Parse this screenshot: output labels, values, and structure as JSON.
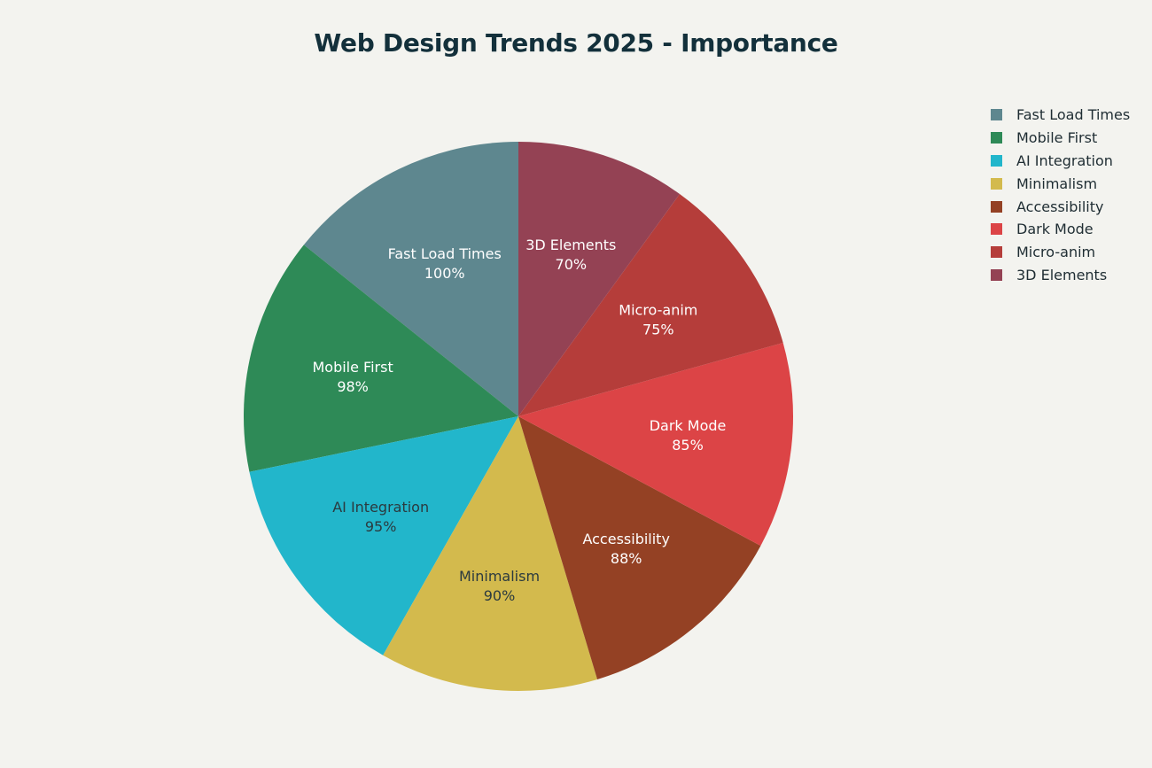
{
  "chart_data": {
    "type": "pie",
    "title": "Web Design Trends 2025 - Importance",
    "legend": "top-right",
    "label_format": "percent",
    "slices": [
      {
        "label": "Fast Load Times",
        "value": 100,
        "color": "#5e878f",
        "text_color": "#ffffff"
      },
      {
        "label": "Mobile First",
        "value": 98,
        "color": "#2e8a57",
        "text_color": "#ffffff"
      },
      {
        "label": "AI Integration",
        "value": 95,
        "color": "#22b6cb",
        "text_color": "#2b3a3f"
      },
      {
        "label": "Minimalism",
        "value": 90,
        "color": "#d3ba4d",
        "text_color": "#2b3a3f"
      },
      {
        "label": "Accessibility",
        "value": 88,
        "color": "#944124",
        "text_color": "#ffffff"
      },
      {
        "label": "Dark Mode",
        "value": 85,
        "color": "#dc4446",
        "text_color": "#ffffff"
      },
      {
        "label": "Micro-anim",
        "value": 75,
        "color": "#b53d3a",
        "text_color": "#ffffff"
      },
      {
        "label": "3D Elements",
        "value": 70,
        "color": "#944254",
        "text_color": "#ffffff"
      }
    ]
  }
}
